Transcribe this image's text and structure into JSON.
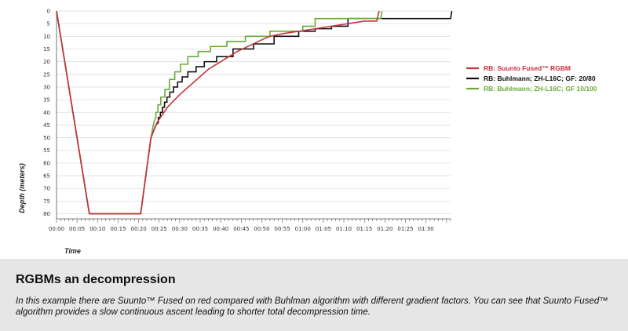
{
  "chart_data": {
    "type": "line",
    "xlabel": "Time",
    "ylabel": "Depth (meters)",
    "x_unit": "minutes",
    "xlim": [
      0,
      96
    ],
    "ylim": [
      0,
      82
    ],
    "y_inverted": true,
    "x_ticks": [
      "00:00",
      "00:05",
      "00:10",
      "00:15",
      "00:20",
      "00:25",
      "00:30",
      "00:35",
      "00:40",
      "00:45",
      "00:50",
      "00:55",
      "01:00",
      "01:05",
      "01:10",
      "01:15",
      "01:20",
      "01:25",
      "01:30"
    ],
    "y_ticks": [
      0,
      5,
      10,
      15,
      20,
      25,
      30,
      35,
      40,
      45,
      50,
      55,
      60,
      65,
      70,
      75,
      80
    ],
    "legend_position": "right",
    "series": [
      {
        "name": "RB: Suunto Fused™ RGBM",
        "color": "#c8323c",
        "points": [
          [
            0,
            0
          ],
          [
            8,
            80
          ],
          [
            20.5,
            80
          ],
          [
            23,
            50
          ],
          [
            24.5,
            44
          ],
          [
            27,
            38
          ],
          [
            30,
            33
          ],
          [
            33.5,
            28
          ],
          [
            37,
            23
          ],
          [
            44,
            16
          ],
          [
            50.5,
            11
          ],
          [
            52,
            10
          ],
          [
            55,
            9
          ],
          [
            59,
            8
          ],
          [
            63,
            7
          ],
          [
            67,
            6
          ],
          [
            71,
            5
          ],
          [
            75,
            4
          ],
          [
            78,
            4
          ],
          [
            78.6,
            0
          ]
        ]
      },
      {
        "name": "RB: Buhlmann; ZH-L16C; GF: 20/80",
        "color": "#111111",
        "points": [
          [
            0,
            0
          ],
          [
            8,
            80
          ],
          [
            20.5,
            80
          ],
          [
            23,
            50
          ],
          [
            24.2,
            45
          ],
          [
            24.8,
            44
          ],
          [
            24.8,
            42
          ],
          [
            25.3,
            42
          ],
          [
            25.3,
            40
          ],
          [
            25.8,
            40
          ],
          [
            25.8,
            38
          ],
          [
            26.3,
            38
          ],
          [
            26.3,
            36
          ],
          [
            26.9,
            36
          ],
          [
            26.9,
            34
          ],
          [
            27.6,
            34
          ],
          [
            27.6,
            32
          ],
          [
            28.5,
            32
          ],
          [
            28.5,
            30
          ],
          [
            29.5,
            30
          ],
          [
            29.5,
            28
          ],
          [
            30.6,
            28
          ],
          [
            30.6,
            26
          ],
          [
            32,
            26
          ],
          [
            32,
            24
          ],
          [
            34,
            24
          ],
          [
            34,
            22
          ],
          [
            36,
            22
          ],
          [
            36,
            20
          ],
          [
            39,
            20
          ],
          [
            39,
            18
          ],
          [
            43,
            18
          ],
          [
            43,
            15
          ],
          [
            48,
            15
          ],
          [
            48,
            13
          ],
          [
            53,
            13
          ],
          [
            53,
            10
          ],
          [
            59,
            10
          ],
          [
            59,
            8
          ],
          [
            63,
            8
          ],
          [
            63,
            7
          ],
          [
            67,
            7
          ],
          [
            67,
            6
          ],
          [
            71,
            6
          ],
          [
            71,
            3
          ],
          [
            96,
            3
          ],
          [
            96.3,
            0
          ]
        ]
      },
      {
        "name": "RB: Buhlmann; ZH-L16C; GF 10/100",
        "color": "#6aaa3a",
        "points": [
          [
            0,
            0
          ],
          [
            8,
            80
          ],
          [
            20.5,
            80
          ],
          [
            23,
            50
          ],
          [
            23.7,
            44
          ],
          [
            24.2,
            42
          ],
          [
            24.2,
            40
          ],
          [
            24.7,
            40
          ],
          [
            24.7,
            37
          ],
          [
            25.4,
            37
          ],
          [
            25.4,
            34
          ],
          [
            26.4,
            34
          ],
          [
            26.4,
            31
          ],
          [
            27.5,
            31
          ],
          [
            27.5,
            27
          ],
          [
            28.8,
            27
          ],
          [
            28.8,
            24
          ],
          [
            30.2,
            24
          ],
          [
            30.2,
            21
          ],
          [
            32,
            21
          ],
          [
            32,
            18
          ],
          [
            34.5,
            18
          ],
          [
            34.5,
            16
          ],
          [
            37.5,
            16
          ],
          [
            37.5,
            14
          ],
          [
            41.5,
            14
          ],
          [
            41.5,
            12
          ],
          [
            46,
            12
          ],
          [
            46,
            10
          ],
          [
            52,
            10
          ],
          [
            52,
            8
          ],
          [
            60,
            8
          ],
          [
            60,
            6
          ],
          [
            63,
            6
          ],
          [
            63,
            3
          ],
          [
            79,
            3
          ],
          [
            79.3,
            0
          ]
        ]
      }
    ]
  },
  "caption": {
    "title": "RGBMs an decompression",
    "text": "In this example there are Suunto™ Fused on red compared with Buhlman algorithm with different gradient factors.  You can see that Suunto Fused™ algorithm provides a slow continuous ascent leading to shorter total decompression time."
  }
}
